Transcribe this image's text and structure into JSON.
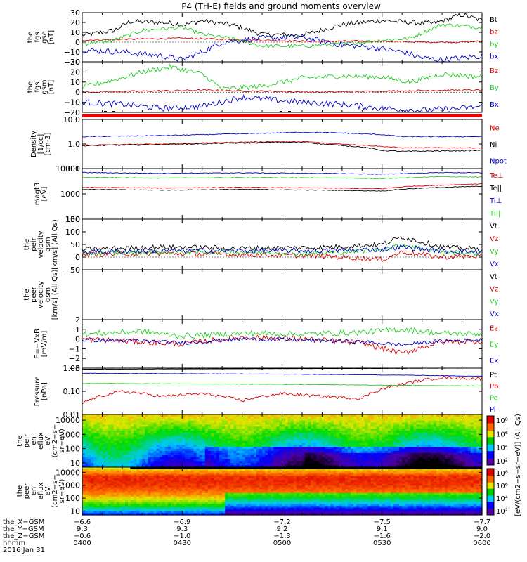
{
  "title": "P4 (TH-E) fields and ground moments overview",
  "colors": {
    "black": "#000000",
    "red": "#dd0000",
    "green": "#22cc22",
    "blue": "#0000cc"
  },
  "chart_data": [
    {
      "type": "line",
      "ylabel": [
        "the",
        "fgs",
        "gse",
        "[nT]"
      ],
      "ylim": [
        -20,
        30
      ],
      "yticks": [
        {
          "v": 30,
          "t": "30"
        },
        {
          "v": 20,
          "t": "20"
        },
        {
          "v": 10,
          "t": "10"
        },
        {
          "v": 0,
          "t": "0"
        },
        {
          "v": -10,
          "t": "−10"
        },
        {
          "v": -20,
          "t": "−20"
        }
      ],
      "series": [
        {
          "name": "Bt",
          "color": "black",
          "x": [
            0,
            8,
            12,
            20,
            26,
            30,
            38,
            45,
            55,
            65,
            75,
            82,
            88,
            95,
            100
          ],
          "y": [
            7,
            12,
            21,
            20,
            18,
            22,
            17,
            8,
            7,
            18,
            22,
            20,
            19,
            28,
            22
          ],
          "noise": 2.5
        },
        {
          "name": "bz",
          "color": "red",
          "x": [
            0,
            12,
            25,
            35,
            45,
            55,
            65,
            75,
            85,
            95,
            100
          ],
          "y": [
            2,
            3,
            4,
            3,
            2,
            1,
            1,
            1,
            0,
            0,
            1
          ],
          "noise": 0.8
        },
        {
          "name": "by",
          "color": "green",
          "x": [
            0,
            8,
            15,
            25,
            30,
            38,
            45,
            55,
            65,
            75,
            82,
            90,
            100
          ],
          "y": [
            -2,
            2,
            12,
            15,
            8,
            3,
            -4,
            -4,
            -2,
            2,
            4,
            18,
            15
          ],
          "noise": 2
        },
        {
          "name": "bx",
          "color": "blue",
          "x": [
            0,
            10,
            20,
            25,
            30,
            35,
            45,
            55,
            65,
            72,
            80,
            85,
            90,
            100
          ],
          "y": [
            -8,
            -10,
            -14,
            -18,
            -10,
            0,
            4,
            5,
            -3,
            -5,
            -10,
            -16,
            -18,
            -14
          ],
          "noise": 3
        }
      ]
    },
    {
      "type": "line",
      "ylabel": [
        "the",
        "fgs",
        "gsm",
        "[nT]"
      ],
      "ylim": [
        -20,
        30
      ],
      "yticks": [
        {
          "v": 30,
          "t": "30"
        },
        {
          "v": 20,
          "t": "20"
        },
        {
          "v": 10,
          "t": "10"
        },
        {
          "v": 0,
          "t": "0"
        },
        {
          "v": -10,
          "t": "−10"
        },
        {
          "v": -20,
          "t": "−20"
        }
      ],
      "series": [
        {
          "name": "Bz",
          "color": "red",
          "x": [
            0,
            15,
            30,
            45,
            60,
            75,
            90,
            100
          ],
          "y": [
            0,
            1,
            2,
            1,
            0,
            1,
            2,
            2
          ],
          "noise": 0.8
        },
        {
          "name": "By",
          "color": "green",
          "x": [
            0,
            8,
            15,
            22,
            30,
            35,
            45,
            55,
            65,
            75,
            82,
            90,
            100
          ],
          "y": [
            5,
            12,
            20,
            25,
            18,
            3,
            6,
            14,
            16,
            15,
            10,
            18,
            15
          ],
          "noise": 2.5
        },
        {
          "name": "Bx",
          "color": "blue",
          "x": [
            0,
            10,
            20,
            30,
            40,
            55,
            65,
            75,
            85,
            95,
            100
          ],
          "y": [
            -10,
            -12,
            -16,
            -14,
            -5,
            -10,
            -12,
            -16,
            -18,
            -16,
            -14
          ],
          "noise": 3
        }
      ]
    },
    {
      "type": "line",
      "log": true,
      "ylabel": [
        "Density",
        "[1/cc]",
        "[cm-3]"
      ],
      "ylim": [
        0.1,
        10
      ],
      "yticks": [
        {
          "v": 10,
          "t": "10.0"
        },
        {
          "v": 1,
          "t": "1.0"
        },
        {
          "v": 0.1,
          "t": "0.1"
        }
      ],
      "series": [
        {
          "name": "Ne",
          "color": "red",
          "x": [
            0,
            20,
            40,
            55,
            60,
            70,
            75,
            80,
            100
          ],
          "y": [
            0.9,
            1.0,
            1.2,
            1.3,
            1.1,
            0.9,
            0.8,
            0.7,
            0.7
          ],
          "noise": 0.04
        },
        {
          "name": "Ni",
          "color": "black",
          "x": [
            0,
            20,
            40,
            55,
            60,
            70,
            75,
            80,
            100
          ],
          "y": [
            0.85,
            0.95,
            1.1,
            1.2,
            1.0,
            0.75,
            0.55,
            0.5,
            0.55
          ],
          "noise": 0.05
        },
        {
          "name": "Npot",
          "color": "blue",
          "x": [
            0,
            20,
            40,
            55,
            65,
            75,
            80,
            100
          ],
          "y": [
            2.0,
            2.2,
            2.6,
            3.0,
            2.8,
            2.4,
            2.0,
            2.0
          ],
          "noise": 0.04
        }
      ]
    },
    {
      "type": "line",
      "log": true,
      "ylabel": [
        "magt3",
        "[eV]"
      ],
      "ylim": [
        100,
        10000
      ],
      "yticks": [
        {
          "v": 10000,
          "t": "10000"
        },
        {
          "v": 1000,
          "t": "1000"
        },
        {
          "v": 100,
          "t": "100"
        }
      ],
      "series": [
        {
          "name": "Te⊥",
          "color": "red",
          "x": [
            0,
            20,
            40,
            60,
            75,
            82,
            90,
            100
          ],
          "y": [
            1800,
            1700,
            1800,
            1700,
            1600,
            2000,
            2200,
            2500
          ],
          "noise": 0.03
        },
        {
          "name": "Te||",
          "color": "black",
          "x": [
            0,
            20,
            40,
            60,
            75,
            82,
            90,
            100
          ],
          "y": [
            1500,
            1400,
            1500,
            1400,
            1300,
            1600,
            1800,
            2000
          ],
          "noise": 0.03
        },
        {
          "name": "Ti⊥",
          "color": "blue",
          "x": [
            0,
            20,
            40,
            60,
            75,
            90,
            100
          ],
          "y": [
            7000,
            6500,
            6800,
            6500,
            6000,
            7000,
            6800
          ],
          "noise": 0.03
        },
        {
          "name": "Ti||",
          "color": "green",
          "x": [
            0,
            20,
            40,
            60,
            75,
            90,
            100
          ],
          "y": [
            4500,
            4200,
            4400,
            4300,
            4000,
            4800,
            4600
          ],
          "noise": 0.03
        }
      ]
    },
    {
      "type": "line",
      "ylabel": [
        "the",
        "peir",
        "velocity",
        "gsm",
        "[km/s] (All Qs)"
      ],
      "ylim": [
        -50,
        150
      ],
      "yticks": [
        {
          "v": 150,
          "t": "150"
        },
        {
          "v": 100,
          "t": "100"
        },
        {
          "v": 50,
          "t": "50"
        },
        {
          "v": 0,
          "t": "0"
        },
        {
          "v": -50,
          "t": "−50"
        }
      ],
      "series": [
        {
          "name": "Vt",
          "color": "black",
          "x": [
            0,
            20,
            40,
            60,
            75,
            80,
            90,
            100
          ],
          "y": [
            30,
            40,
            35,
            38,
            50,
            80,
            40,
            30
          ],
          "noise": 10
        },
        {
          "name": "Vz",
          "color": "red",
          "x": [
            0,
            20,
            40,
            60,
            75,
            80,
            90,
            100
          ],
          "y": [
            10,
            15,
            10,
            5,
            -10,
            20,
            0,
            5
          ],
          "noise": 10
        },
        {
          "name": "Vy",
          "color": "green",
          "x": [
            0,
            20,
            40,
            60,
            75,
            80,
            90,
            100
          ],
          "y": [
            15,
            20,
            20,
            15,
            30,
            50,
            20,
            15
          ],
          "noise": 10
        },
        {
          "name": "Vx",
          "color": "blue",
          "x": [
            0,
            20,
            40,
            60,
            75,
            80,
            90,
            100
          ],
          "y": [
            20,
            25,
            25,
            25,
            30,
            40,
            25,
            20
          ],
          "noise": 10
        }
      ]
    },
    {
      "type": "line",
      "ylabel": [
        "the",
        "peer",
        "velocity",
        "gsm",
        "[km/s] (All Qs)"
      ],
      "ylim": [
        0,
        1
      ],
      "yticks": [],
      "series": [
        {
          "name": "Vt",
          "color": "black",
          "x": [],
          "y": []
        },
        {
          "name": "Vz",
          "color": "red",
          "x": [],
          "y": []
        },
        {
          "name": "Vy",
          "color": "green",
          "x": [],
          "y": []
        },
        {
          "name": "Vx",
          "color": "blue",
          "x": [],
          "y": []
        }
      ]
    },
    {
      "type": "line",
      "ylabel": [
        "E=−VxB",
        "[mV/m]"
      ],
      "ylim": [
        -3,
        2
      ],
      "yticks": [
        {
          "v": 2,
          "t": "2"
        },
        {
          "v": 1,
          "t": "1"
        },
        {
          "v": 0,
          "t": "0"
        },
        {
          "v": -1,
          "t": "−1"
        },
        {
          "v": -2,
          "t": "−2"
        },
        {
          "v": -3,
          "t": "−3"
        }
      ],
      "series": [
        {
          "name": "Ez",
          "color": "red",
          "x": [
            0,
            15,
            25,
            40,
            55,
            70,
            80,
            85,
            90,
            100
          ],
          "y": [
            0,
            -0.3,
            -0.5,
            0.2,
            0,
            -0.4,
            -1.5,
            -0.8,
            -0.3,
            -0.2
          ],
          "noise": 0.3
        },
        {
          "name": "Ey",
          "color": "green",
          "x": [
            0,
            15,
            25,
            40,
            55,
            70,
            80,
            90,
            100
          ],
          "y": [
            0.5,
            0.8,
            0.3,
            0.6,
            0.5,
            0.7,
            1.0,
            0.6,
            0.5
          ],
          "noise": 0.3
        },
        {
          "name": "Ex",
          "color": "blue",
          "x": [
            0,
            15,
            25,
            40,
            55,
            70,
            80,
            90,
            100
          ],
          "y": [
            -0.1,
            -0.2,
            -0.4,
            0,
            -0.1,
            -0.3,
            -0.6,
            -0.2,
            -0.1
          ],
          "noise": 0.2
        }
      ]
    },
    {
      "type": "line",
      "log": true,
      "ylabel": [
        "Pressure",
        "[nPa]"
      ],
      "ylim": [
        0.01,
        1
      ],
      "yticks": [
        {
          "v": 1,
          "t": "1.00"
        },
        {
          "v": 0.1,
          "t": "0.10"
        },
        {
          "v": 0.01,
          "t": "0.01"
        }
      ],
      "series": [
        {
          "name": "Pt",
          "color": "black",
          "x": [
            0,
            50,
            100
          ],
          "y": [
            0.9,
            0.95,
            1.0
          ],
          "noise": 0.01
        },
        {
          "name": "Pb",
          "color": "red",
          "x": [
            0,
            10,
            20,
            30,
            40,
            50,
            60,
            70,
            80,
            90,
            100
          ],
          "y": [
            0.03,
            0.1,
            0.06,
            0.08,
            0.04,
            0.08,
            0.06,
            0.05,
            0.2,
            0.4,
            0.35
          ],
          "noise": 0.15
        },
        {
          "name": "Pe",
          "color": "green",
          "x": [
            0,
            50,
            80,
            100
          ],
          "y": [
            0.22,
            0.2,
            0.18,
            0.17
          ],
          "noise": 0.02
        },
        {
          "name": "Pi",
          "color": "blue",
          "x": [
            0,
            50,
            80,
            100
          ],
          "y": [
            0.6,
            0.55,
            0.5,
            0.45
          ],
          "noise": 0.02
        }
      ]
    },
    {
      "type": "heatmap",
      "ylabel": [
        "the",
        "peir",
        "en",
        "eflux",
        "eV",
        "(cm2−s−",
        "sr−eV)"
      ],
      "ylim": [
        5,
        25000
      ],
      "log": true,
      "yticks": [
        {
          "v": 10000,
          "t": "10000"
        },
        {
          "v": 1000,
          "t": "1000"
        },
        {
          "v": 100,
          "t": "100"
        },
        {
          "v": 10,
          "t": "10"
        }
      ]
    },
    {
      "type": "heatmap",
      "ylabel": [
        "the",
        "peer",
        "en",
        "eflux",
        "eV",
        "(cm2−s−",
        "sr−eV)"
      ],
      "ylim": [
        5,
        25000
      ],
      "log": true,
      "yticks": [
        {
          "v": 10000,
          "t": "10000"
        },
        {
          "v": 1000,
          "t": "1000"
        },
        {
          "v": 100,
          "t": "100"
        },
        {
          "v": 10,
          "t": "10"
        }
      ]
    }
  ],
  "legends": [
    [
      "Bt",
      "bz",
      "by",
      "bx"
    ],
    [
      "Bz",
      "By",
      "Bx"
    ],
    [
      "Ne",
      "Ni",
      "Npot"
    ],
    [
      "Te⊥",
      "Te||",
      "Ti⊥",
      "Ti||"
    ],
    [
      "Vt",
      "Vz",
      "Vy",
      "Vx"
    ],
    [
      "Vt",
      "Vz",
      "Vy",
      "Vx"
    ],
    [
      "Ez",
      "Ey",
      "Ex"
    ],
    [
      "Pt",
      "Pb",
      "Pe",
      "Pi"
    ]
  ],
  "colorbar": {
    "label": "[eV/(cm2−s−sr−eV)] (All Qs)",
    "upper_ticks": [
      "10⁸",
      "10⁶",
      "10⁴",
      "10²"
    ],
    "lower_ticks": [
      "10⁸",
      "10⁶",
      "10⁴",
      "10²"
    ]
  },
  "xaxis": {
    "rows": [
      {
        "label": "the_X−GSM",
        "values": [
          "−6.6",
          "−6.9",
          "−7.2",
          "−7.5",
          "−7.7"
        ]
      },
      {
        "label": "the_Y−GSM",
        "values": [
          "9.3",
          "9.3",
          "9.2",
          "9.1",
          "9.0"
        ]
      },
      {
        "label": "the_Z−GSM",
        "values": [
          "−0.6",
          "−1.0",
          "−1.3",
          "−1.6",
          "−2.0"
        ]
      },
      {
        "label": "hhmm",
        "values": [
          "0400",
          "0430",
          "0500",
          "0530",
          "0600"
        ]
      }
    ],
    "date": "2016 Jan 31"
  }
}
